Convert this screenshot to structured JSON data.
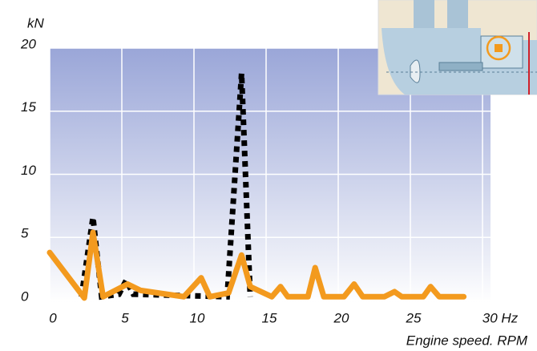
{
  "chart_data": {
    "type": "line",
    "y_label": "kN",
    "x_label": "Engine speed. RPM",
    "xlim": [
      0,
      30
    ],
    "ylim": [
      0,
      20
    ],
    "xticks": [
      0,
      5,
      10,
      15,
      20,
      25,
      {
        "value": 30,
        "label": "30 Hz"
      }
    ],
    "yticks": [
      0,
      5,
      10,
      15,
      20
    ],
    "grid": true,
    "series": [
      {
        "color": "#000000",
        "style": "dotted",
        "x": [
          2.2,
          3.0,
          3.6,
          4.8,
          5.3,
          5.8,
          12.3,
          13.3,
          13.9
        ],
        "values": [
          0.3,
          6.6,
          0.3,
          0.5,
          1.6,
          0.5,
          0.3,
          18.0,
          0.3
        ]
      },
      {
        "color": "#f39a1e",
        "style": "solid",
        "x": [
          0,
          2.4,
          3.0,
          3.7,
          5.4,
          6.3,
          9.3,
          10.5,
          11.1,
          12.4,
          13.3,
          13.9,
          15.4,
          16.0,
          16.5,
          17.9,
          18.4,
          19.0,
          20.4,
          21.1,
          21.7,
          23.2,
          23.9,
          24.4,
          25.9,
          26.4,
          27.0,
          28.7
        ],
        "values": [
          3.8,
          0.2,
          5.4,
          0.3,
          1.3,
          0.8,
          0.3,
          1.8,
          0.3,
          0.6,
          3.6,
          1.1,
          0.3,
          1.1,
          0.3,
          0.3,
          2.6,
          0.3,
          0.3,
          1.3,
          0.3,
          0.3,
          0.7,
          0.3,
          0.3,
          1.1,
          0.3,
          0.3
        ]
      }
    ]
  }
}
